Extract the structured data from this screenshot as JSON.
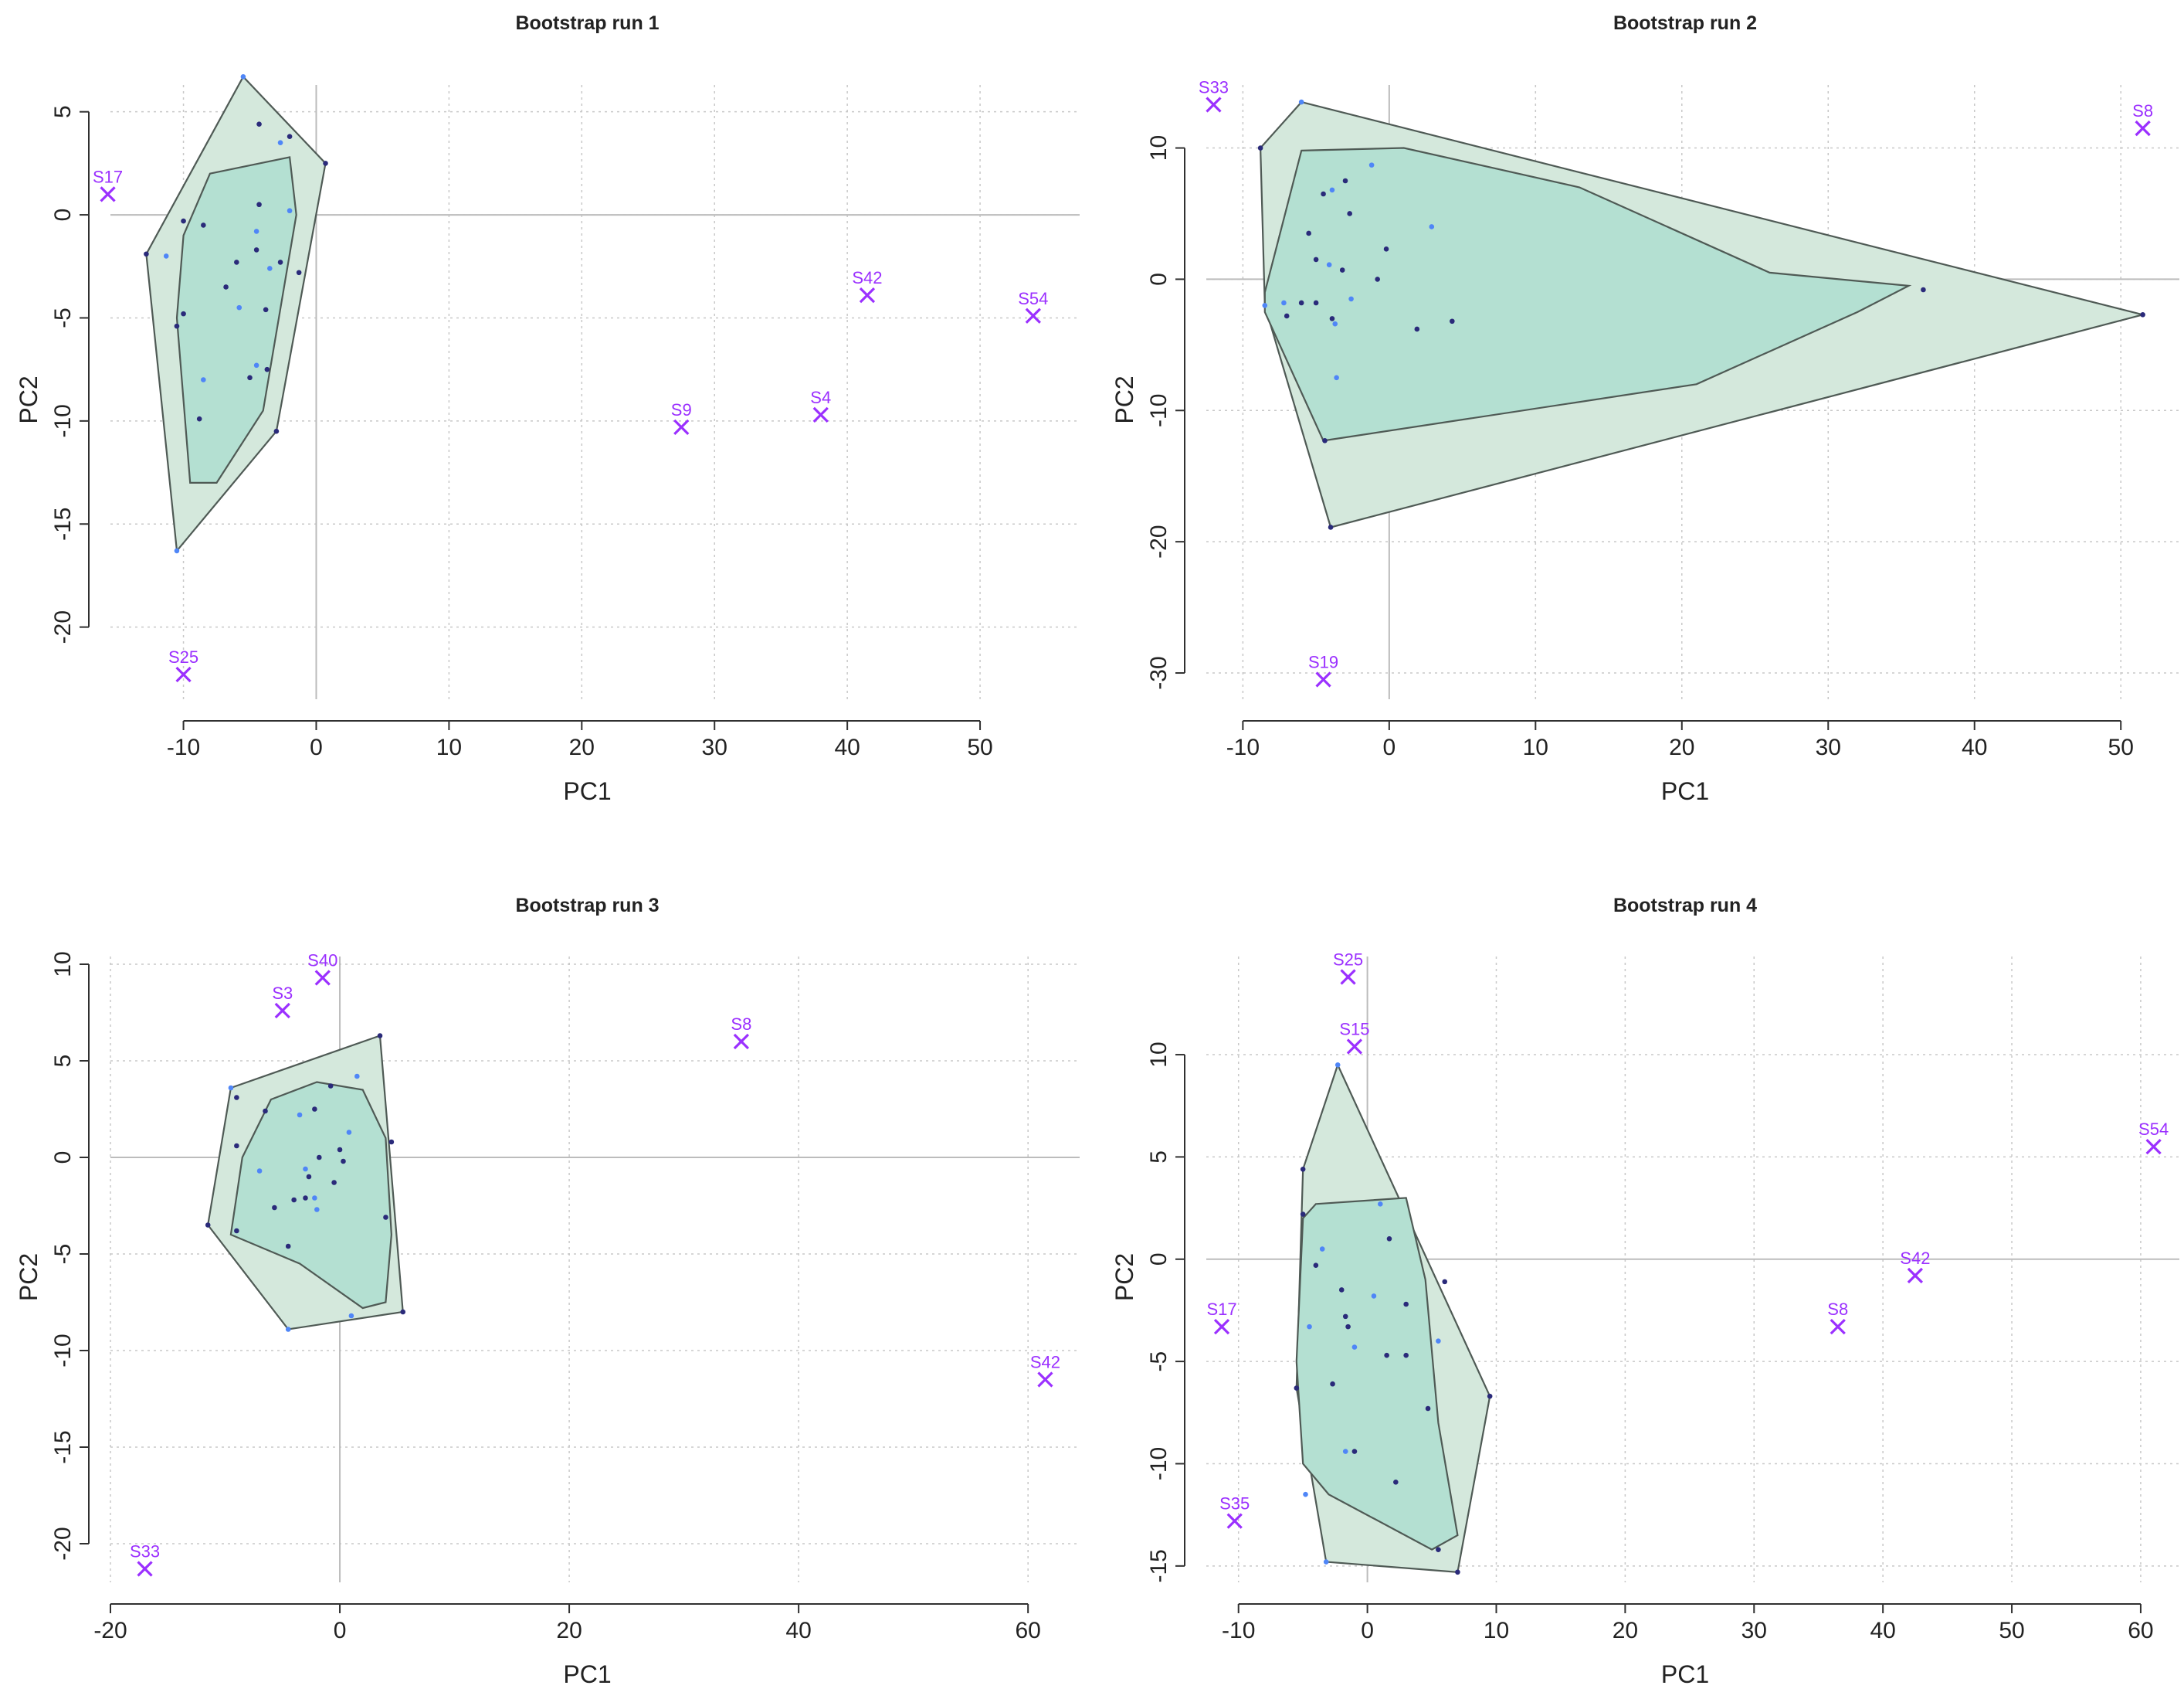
{
  "colors": {
    "outer_hull_fill": "#d4e8dc",
    "inner_hull_fill": "#b4e0d2",
    "hull_stroke": "#4f5a55",
    "grid": "#c8c8c8",
    "axis": "#303030",
    "text": "#222222",
    "outlier": "#9b30ff",
    "point_dark": "#2a2a7a",
    "point_light": "#4f86f7"
  },
  "chart_data": [
    {
      "type": "scatter",
      "title": "Bootstrap run 1",
      "xlabel": "PC1",
      "ylabel": "PC2",
      "xlim": [
        -15.5,
        57.5
      ],
      "ylim": [
        -23.5,
        6.3
      ],
      "xticks": [
        -10,
        0,
        10,
        20,
        30,
        40,
        50
      ],
      "yticks": [
        -20,
        -15,
        -10,
        -5,
        0,
        5
      ],
      "grid": true,
      "outer_hull": [
        [
          -5.5,
          6.7
        ],
        [
          0.7,
          2.5
        ],
        [
          -3.0,
          -10.5
        ],
        [
          -10.5,
          -16.3
        ],
        [
          -12.8,
          -1.9
        ]
      ],
      "inner_hull": [
        [
          -8.0,
          2.0
        ],
        [
          -2.0,
          2.8
        ],
        [
          -1.5,
          0.0
        ],
        [
          -4.0,
          -9.5
        ],
        [
          -7.5,
          -13.0
        ],
        [
          -9.5,
          -13.0
        ],
        [
          -10.5,
          -5.0
        ],
        [
          -10.0,
          -1.0
        ]
      ],
      "points": [
        [
          -5.5,
          6.7
        ],
        [
          0.7,
          2.5
        ],
        [
          -3.0,
          -10.5
        ],
        [
          -10.5,
          -16.3
        ],
        [
          -12.8,
          -1.9
        ],
        [
          -4.3,
          4.4
        ],
        [
          -2.7,
          3.5
        ],
        [
          -2.0,
          3.8
        ],
        [
          -4.3,
          0.5
        ],
        [
          -2.0,
          0.2
        ],
        [
          -8.5,
          -0.5
        ],
        [
          -10.0,
          -0.3
        ],
        [
          -4.5,
          -0.8
        ],
        [
          -6.0,
          -2.3
        ],
        [
          -4.5,
          -1.7
        ],
        [
          -3.5,
          -2.6
        ],
        [
          -2.7,
          -2.3
        ],
        [
          -1.3,
          -2.8
        ],
        [
          -11.3,
          -2.0
        ],
        [
          -10.0,
          -4.8
        ],
        [
          -6.8,
          -3.5
        ],
        [
          -5.8,
          -4.5
        ],
        [
          -10.5,
          -5.4
        ],
        [
          -3.8,
          -4.6
        ],
        [
          -4.5,
          -7.3
        ],
        [
          -3.7,
          -7.5
        ],
        [
          -5.0,
          -7.9
        ],
        [
          -8.5,
          -8.0
        ],
        [
          -8.8,
          -9.9
        ]
      ],
      "outliers": [
        {
          "label": "S17",
          "x": -15.7,
          "y": 1.0
        },
        {
          "label": "S25",
          "x": -10.0,
          "y": -22.3
        },
        {
          "label": "S9",
          "x": 27.5,
          "y": -10.3
        },
        {
          "label": "S4",
          "x": 38.0,
          "y": -9.7
        },
        {
          "label": "S42",
          "x": 41.5,
          "y": -3.9
        },
        {
          "label": "S54",
          "x": 54.0,
          "y": -4.9
        }
      ]
    },
    {
      "type": "scatter",
      "title": "Bootstrap run 2",
      "xlabel": "PC1",
      "ylabel": "PC2",
      "xlim": [
        -12.5,
        54.0
      ],
      "ylim": [
        -32.0,
        14.8
      ],
      "xticks": [
        -10,
        0,
        10,
        20,
        30,
        40,
        50
      ],
      "yticks": [
        -30,
        -20,
        -10,
        0,
        10
      ],
      "grid": true,
      "outer_hull": [
        [
          -6.0,
          13.5
        ],
        [
          51.5,
          -2.7
        ],
        [
          -4.0,
          -18.9
        ],
        [
          -8.5,
          -2.0
        ],
        [
          -8.8,
          10.0
        ]
      ],
      "inner_hull": [
        [
          -6.0,
          9.8
        ],
        [
          1.0,
          10.0
        ],
        [
          13.0,
          7.0
        ],
        [
          26.0,
          0.5
        ],
        [
          35.5,
          -0.5
        ],
        [
          32.0,
          -2.5
        ],
        [
          21.0,
          -8.0
        ],
        [
          -4.5,
          -12.3
        ],
        [
          -8.5,
          -2.5
        ],
        [
          -8.5,
          -1.0
        ]
      ],
      "points": [
        [
          -6.0,
          13.5
        ],
        [
          51.5,
          -2.7
        ],
        [
          -4.0,
          -18.9
        ],
        [
          -8.5,
          -2.0
        ],
        [
          -8.8,
          10.0
        ],
        [
          36.5,
          -0.8
        ],
        [
          -1.2,
          8.7
        ],
        [
          -3.0,
          7.5
        ],
        [
          -4.5,
          6.5
        ],
        [
          -3.9,
          6.8
        ],
        [
          -2.7,
          5.0
        ],
        [
          -5.5,
          3.5
        ],
        [
          2.9,
          4.0
        ],
        [
          -0.2,
          2.3
        ],
        [
          -5.0,
          1.5
        ],
        [
          -4.1,
          1.1
        ],
        [
          -3.2,
          0.7
        ],
        [
          -0.8,
          0.0
        ],
        [
          -7.2,
          -1.8
        ],
        [
          -6.0,
          -1.8
        ],
        [
          -5.0,
          -1.8
        ],
        [
          -2.6,
          -1.5
        ],
        [
          -7.0,
          -2.8
        ],
        [
          -3.9,
          -3.0
        ],
        [
          -3.7,
          -3.4
        ],
        [
          4.3,
          -3.2
        ],
        [
          1.9,
          -3.8
        ],
        [
          -3.6,
          -7.5
        ],
        [
          -4.4,
          -12.3
        ]
      ],
      "outliers": [
        {
          "label": "S33",
          "x": -12.0,
          "y": 13.3
        },
        {
          "label": "S8",
          "x": 51.5,
          "y": 11.5
        },
        {
          "label": "S19",
          "x": -4.5,
          "y": -30.5
        }
      ]
    },
    {
      "type": "scatter",
      "title": "Bootstrap run 3",
      "xlabel": "PC1",
      "ylabel": "PC2",
      "xlim": [
        -20.0,
        64.5
      ],
      "ylim": [
        -22.0,
        10.4
      ],
      "xticks": [
        -20,
        0,
        20,
        40,
        60
      ],
      "yticks": [
        -20,
        -15,
        -10,
        -5,
        0,
        5,
        10
      ],
      "grid": true,
      "outer_hull": [
        [
          -9.5,
          3.6
        ],
        [
          3.5,
          6.3
        ],
        [
          5.5,
          -8.0
        ],
        [
          -4.5,
          -8.9
        ],
        [
          -11.5,
          -3.5
        ]
      ],
      "inner_hull": [
        [
          -6.0,
          3.0
        ],
        [
          -2.0,
          3.9
        ],
        [
          2.0,
          3.5
        ],
        [
          4.0,
          1.0
        ],
        [
          4.5,
          -4.0
        ],
        [
          4.0,
          -7.5
        ],
        [
          2.0,
          -7.8
        ],
        [
          -3.5,
          -5.5
        ],
        [
          -9.5,
          -4.0
        ],
        [
          -8.5,
          0.0
        ]
      ],
      "points": [
        [
          -9.5,
          3.6
        ],
        [
          3.5,
          6.3
        ],
        [
          5.5,
          -8.0
        ],
        [
          -4.5,
          -8.9
        ],
        [
          -11.5,
          -3.5
        ],
        [
          -9.0,
          3.1
        ],
        [
          1.5,
          4.2
        ],
        [
          -0.8,
          3.7
        ],
        [
          -6.5,
          2.4
        ],
        [
          -3.5,
          2.2
        ],
        [
          -2.2,
          2.5
        ],
        [
          -9.0,
          0.6
        ],
        [
          0.8,
          1.3
        ],
        [
          0.0,
          0.4
        ],
        [
          -1.8,
          0.0
        ],
        [
          -3.0,
          -0.6
        ],
        [
          -2.7,
          -1.0
        ],
        [
          0.3,
          -0.2
        ],
        [
          -7.0,
          -0.7
        ],
        [
          -4.0,
          -2.2
        ],
        [
          -3.0,
          -2.1
        ],
        [
          -2.2,
          -2.1
        ],
        [
          -0.5,
          -1.3
        ],
        [
          -5.7,
          -2.6
        ],
        [
          -2.0,
          -2.7
        ],
        [
          4.5,
          0.8
        ],
        [
          4.0,
          -3.1
        ],
        [
          1.0,
          -8.2
        ],
        [
          -4.5,
          -4.6
        ],
        [
          -9.0,
          -3.8
        ]
      ],
      "outliers": [
        {
          "label": "S40",
          "x": -1.5,
          "y": 9.3
        },
        {
          "label": "S3",
          "x": -5.0,
          "y": 7.6
        },
        {
          "label": "S8",
          "x": 35.0,
          "y": 6.0
        },
        {
          "label": "S42",
          "x": 61.5,
          "y": -11.5
        },
        {
          "label": "S33",
          "x": -17.0,
          "y": -21.3
        }
      ]
    },
    {
      "type": "scatter",
      "title": "Bootstrap run 4",
      "xlabel": "PC1",
      "ylabel": "PC2",
      "xlim": [
        -12.5,
        63.0
      ],
      "ylim": [
        -15.8,
        14.8
      ],
      "xticks": [
        -10,
        0,
        10,
        20,
        30,
        40,
        50,
        60
      ],
      "yticks": [
        -15,
        -10,
        -5,
        0,
        5,
        10
      ],
      "grid": true,
      "outer_hull": [
        [
          -2.3,
          9.5
        ],
        [
          9.5,
          -6.7
        ],
        [
          7.0,
          -15.3
        ],
        [
          -3.2,
          -14.8
        ],
        [
          -5.5,
          -6.3
        ],
        [
          -5.0,
          4.4
        ]
      ],
      "inner_hull": [
        [
          -4.0,
          2.7
        ],
        [
          3.0,
          3.0
        ],
        [
          4.5,
          -1.0
        ],
        [
          5.5,
          -8.0
        ],
        [
          7.0,
          -13.5
        ],
        [
          5.0,
          -14.2
        ],
        [
          -3.0,
          -11.5
        ],
        [
          -5.0,
          -10.0
        ],
        [
          -5.5,
          -5.0
        ],
        [
          -5.0,
          2.0
        ]
      ],
      "points": [
        [
          -2.3,
          9.5
        ],
        [
          9.5,
          -6.7
        ],
        [
          7.0,
          -15.3
        ],
        [
          -3.2,
          -14.8
        ],
        [
          -5.5,
          -6.3
        ],
        [
          -5.0,
          4.4
        ],
        [
          1.0,
          2.7
        ],
        [
          -5.0,
          2.2
        ],
        [
          1.7,
          1.0
        ],
        [
          -3.5,
          0.5
        ],
        [
          -4.0,
          -0.3
        ],
        [
          -2.0,
          -1.5
        ],
        [
          0.5,
          -1.8
        ],
        [
          3.0,
          -2.2
        ],
        [
          -1.7,
          -2.8
        ],
        [
          -4.5,
          -3.3
        ],
        [
          -1.5,
          -3.3
        ],
        [
          6.0,
          -1.1
        ],
        [
          -1.0,
          -4.3
        ],
        [
          1.5,
          -4.7
        ],
        [
          3.0,
          -4.7
        ],
        [
          5.5,
          -4.0
        ],
        [
          -2.7,
          -6.1
        ],
        [
          4.7,
          -7.3
        ],
        [
          -1.7,
          -9.4
        ],
        [
          -1.0,
          -9.4
        ],
        [
          2.2,
          -10.9
        ],
        [
          -4.8,
          -11.5
        ],
        [
          5.5,
          -14.2
        ]
      ],
      "outliers": [
        {
          "label": "S25",
          "x": -1.5,
          "y": 13.8
        },
        {
          "label": "S15",
          "x": -1.0,
          "y": 10.4
        },
        {
          "label": "S54",
          "x": 61.0,
          "y": 5.5
        },
        {
          "label": "S42",
          "x": 42.5,
          "y": -0.8
        },
        {
          "label": "S17",
          "x": -11.3,
          "y": -3.3
        },
        {
          "label": "S8",
          "x": 36.5,
          "y": -3.3
        },
        {
          "label": "S35",
          "x": -10.3,
          "y": -12.8
        }
      ]
    }
  ]
}
